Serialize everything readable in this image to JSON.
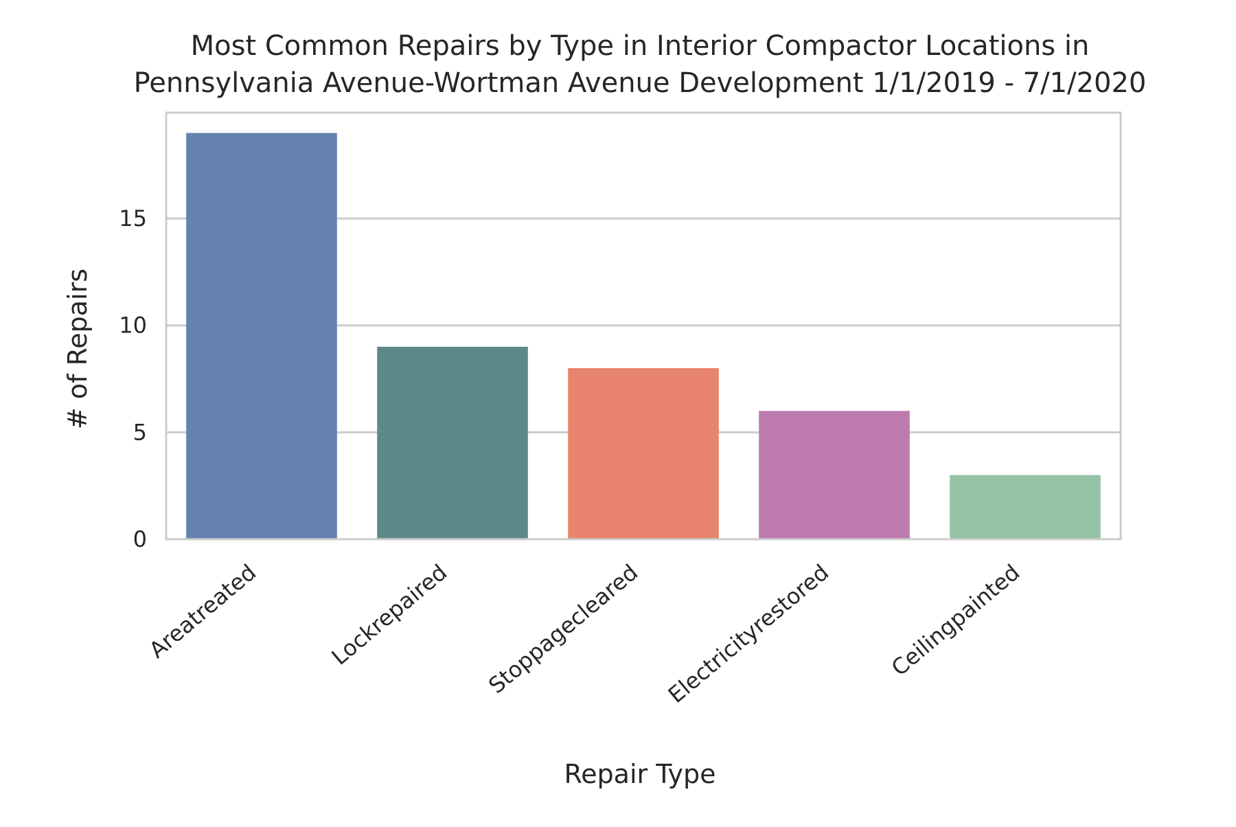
{
  "chart_data": {
    "type": "bar",
    "title_lines": [
      "Most Common Repairs by Type in Interior Compactor Locations in",
      "Pennsylvania Avenue-Wortman Avenue Development 1/1/2019 - 7/1/2020"
    ],
    "xlabel": "Repair Type",
    "ylabel": "# of Repairs",
    "categories": [
      "Areatreated",
      "Lockrepaired",
      "Stoppagecleared",
      "Electricityrestored",
      "Ceilingpainted"
    ],
    "values": [
      19,
      9,
      8,
      6,
      3
    ],
    "colors": [
      "#6581b0",
      "#5d8a89",
      "#e8846d",
      "#be7bae",
      "#95c2a5"
    ],
    "ylim": [
      0,
      19.95
    ],
    "yticks": [
      0,
      5,
      10,
      15
    ],
    "grid": true,
    "grid_axis": "y",
    "grid_color": "#cccccc",
    "spine_color": "#cccccc"
  }
}
